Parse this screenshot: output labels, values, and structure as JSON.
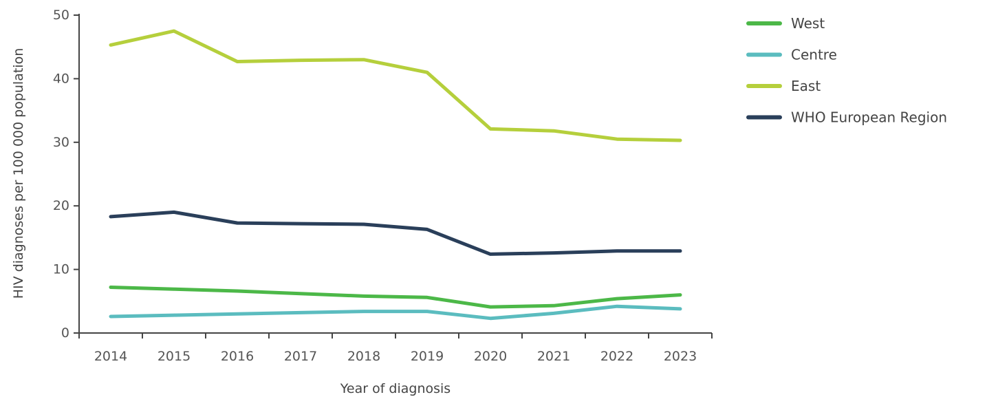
{
  "chart_data": {
    "type": "line",
    "title": "",
    "xlabel": "Year of diagnosis",
    "ylabel": "HIV diagnoses per 100 000 population",
    "categories": [
      "2014",
      "2015",
      "2016",
      "2017",
      "2018",
      "2019",
      "2020",
      "2021",
      "2022",
      "2023"
    ],
    "ylim": [
      0,
      50
    ],
    "yticks": [
      "0",
      "10",
      "20",
      "30",
      "40",
      "50"
    ],
    "grid": false,
    "legend_position": "right",
    "series": [
      {
        "name": "West",
        "color": "#4cb848",
        "values": [
          7.2,
          6.9,
          6.6,
          6.2,
          5.8,
          5.6,
          4.1,
          4.3,
          5.4,
          6.0
        ]
      },
      {
        "name": "Centre",
        "color": "#5bbcbf",
        "values": [
          2.6,
          2.8,
          3.0,
          3.2,
          3.4,
          3.4,
          2.3,
          3.1,
          4.2,
          3.8
        ]
      },
      {
        "name": "East",
        "color": "#b5cf3c",
        "values": [
          45.3,
          47.5,
          42.7,
          42.9,
          43.0,
          41.0,
          32.1,
          31.8,
          30.5,
          30.3
        ]
      },
      {
        "name": "WHO European Region",
        "color": "#2a3f5a",
        "values": [
          18.3,
          19.0,
          17.3,
          17.2,
          17.1,
          16.3,
          12.4,
          12.6,
          12.9,
          12.9
        ]
      }
    ]
  }
}
